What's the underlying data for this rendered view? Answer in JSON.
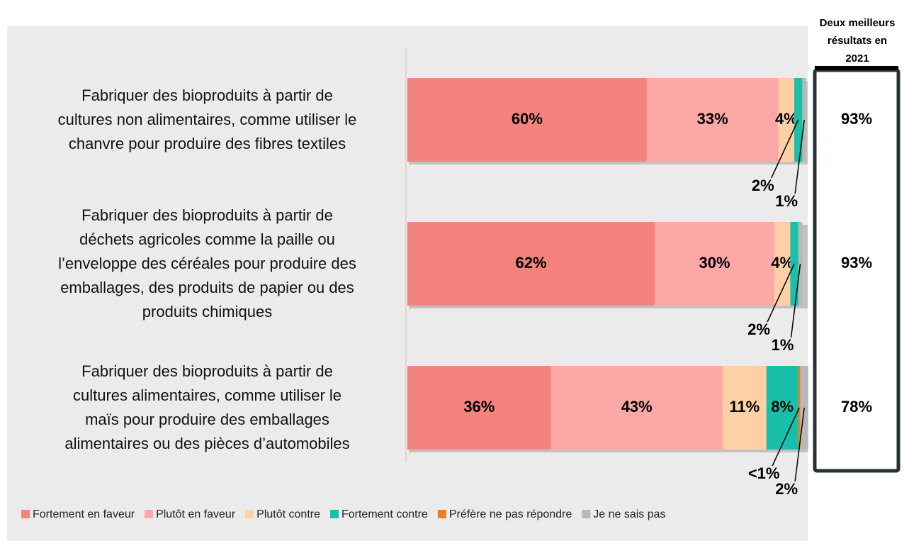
{
  "chart_data": {
    "type": "stacked-barh",
    "categories": [
      "Fabriquer des bioproduits à partir de\ncultures non alimentaires, comme utiliser le\nchanvre pour produire des fibres textiles",
      "Fabriquer des bioproduits à partir de\ndéchets agricoles comme la paille ou\nl’enveloppe des céréales pour produire des\nemballages, des produits de papier ou des\nproduits chimiques",
      "Fabriquer des bioproduits à partir de\ncultures alimentaires, comme utiliser le\nmaïs pour produire des emballages\nalimentaires ou des pièces d’automobiles"
    ],
    "xlim": [
      0,
      100
    ],
    "series": [
      {
        "name": "Fortement en faveur",
        "color": "#f4837d",
        "values": [
          60,
          62,
          36
        ],
        "value_labels": [
          "60%",
          "62%",
          "36%"
        ]
      },
      {
        "name": "Plutôt en faveur",
        "color": "#fba8a7",
        "values": [
          33,
          30,
          43
        ],
        "value_labels": [
          "33%",
          "30%",
          "43%"
        ]
      },
      {
        "name": "Plutôt contre",
        "color": "#fdd0a6",
        "values": [
          4,
          4,
          11
        ],
        "value_labels": [
          "4%",
          "4%",
          "11%"
        ]
      },
      {
        "name": "Fortement contre",
        "color": "#19c0a9",
        "values": [
          2,
          2,
          8
        ],
        "value_labels": [
          "2%",
          "2%",
          "8%"
        ]
      },
      {
        "name": "Préfère ne pas répondre",
        "color": "#f07d20",
        "values": [
          0,
          0,
          0.5
        ],
        "value_labels": [
          null,
          null,
          "<1%"
        ]
      },
      {
        "name": "Je ne sais pas",
        "color": "#b8b8b8",
        "values": [
          1,
          1,
          2
        ],
        "value_labels": [
          "1%",
          "1%",
          "2%"
        ]
      }
    ],
    "top2": {
      "title": "Deux meilleurs\nrésultats en\n2021",
      "values": [
        93,
        93,
        78
      ],
      "value_labels": [
        "93%",
        "93%",
        "78%"
      ]
    }
  }
}
